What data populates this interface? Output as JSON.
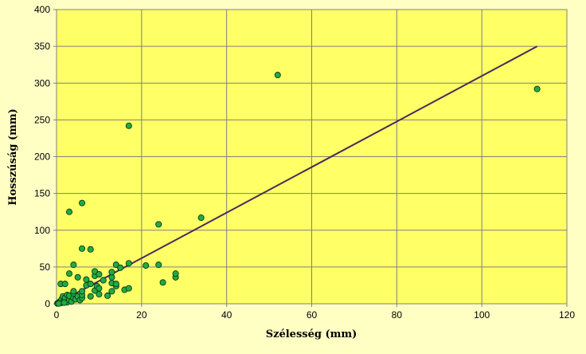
{
  "chart_data": {
    "type": "scatter",
    "xlabel": "Szélesség (mm)",
    "ylabel": "Hosszúság (mm)",
    "xlim": [
      0,
      120
    ],
    "ylim": [
      0,
      400
    ],
    "x_ticks": [
      0,
      20,
      40,
      60,
      80,
      100,
      120
    ],
    "y_ticks": [
      0,
      50,
      100,
      150,
      200,
      250,
      300,
      350,
      400
    ],
    "grid": true,
    "legend": "none",
    "colors": {
      "plot_background": "#ffff66",
      "page_background": "#ffffc4",
      "gridline": "#808080",
      "marker_fill": "#22aa44",
      "marker_edge": "#0b3d14",
      "trendline": "#4b2a5a"
    },
    "points": [
      [
        0.2,
        0.5
      ],
      [
        0.4,
        1.2
      ],
      [
        0.6,
        2
      ],
      [
        0.8,
        3
      ],
      [
        1,
        1
      ],
      [
        1,
        4
      ],
      [
        1.2,
        6
      ],
      [
        1.5,
        2
      ],
      [
        1.5,
        10
      ],
      [
        1,
        27
      ],
      [
        2,
        4
      ],
      [
        2,
        8
      ],
      [
        2.5,
        2
      ],
      [
        2.5,
        12
      ],
      [
        2,
        27
      ],
      [
        3,
        5
      ],
      [
        3,
        11
      ],
      [
        3,
        41
      ],
      [
        3.5,
        3
      ],
      [
        4,
        8
      ],
      [
        4,
        14
      ],
      [
        4,
        17
      ],
      [
        4,
        53
      ],
      [
        4.5,
        6
      ],
      [
        5,
        10
      ],
      [
        5,
        36
      ],
      [
        5.5,
        5
      ],
      [
        6,
        8
      ],
      [
        6,
        12
      ],
      [
        6,
        17
      ],
      [
        6,
        75
      ],
      [
        7,
        25
      ],
      [
        7,
        33
      ],
      [
        8,
        10
      ],
      [
        8,
        27
      ],
      [
        8,
        74
      ],
      [
        9,
        38
      ],
      [
        9,
        44
      ],
      [
        9,
        18
      ],
      [
        9.5,
        24
      ],
      [
        10,
        13
      ],
      [
        10,
        21
      ],
      [
        10,
        40
      ],
      [
        11,
        32
      ],
      [
        12,
        11
      ],
      [
        13,
        17
      ],
      [
        13,
        28
      ],
      [
        13,
        36
      ],
      [
        13,
        43
      ],
      [
        14,
        24
      ],
      [
        14,
        27
      ],
      [
        14,
        53
      ],
      [
        15,
        49
      ],
      [
        16,
        19
      ],
      [
        17,
        21
      ],
      [
        17,
        55
      ],
      [
        17,
        242
      ],
      [
        21,
        52
      ],
      [
        24,
        53
      ],
      [
        24,
        108
      ],
      [
        25,
        29
      ],
      [
        28,
        36
      ],
      [
        28,
        41
      ],
      [
        34,
        117
      ],
      [
        52,
        311
      ],
      [
        113,
        292
      ],
      [
        3,
        125
      ],
      [
        6,
        137
      ],
      [
        0.5,
        0.3
      ],
      [
        1.8,
        1.5
      ]
    ],
    "trendline": {
      "x": [
        0,
        113
      ],
      "y": [
        0,
        350
      ]
    }
  }
}
